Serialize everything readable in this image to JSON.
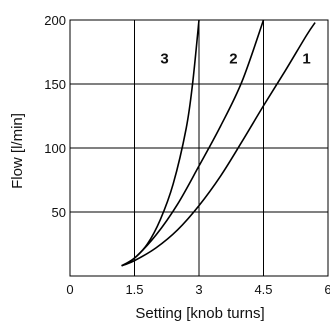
{
  "chart_data": {
    "type": "line",
    "title": "",
    "xlabel": "Setting [knob turns]",
    "ylabel": "Flow [l/min]",
    "xlim": [
      0,
      6
    ],
    "ylim": [
      0,
      200
    ],
    "x_ticks": [
      {
        "value": 0,
        "label": "0"
      },
      {
        "value": 1.5,
        "label": "1.5"
      },
      {
        "value": 3,
        "label": "3"
      },
      {
        "value": 4.5,
        "label": "4.5"
      },
      {
        "value": 6,
        "label": "6"
      }
    ],
    "y_ticks": [
      {
        "value": 50,
        "label": "50"
      },
      {
        "value": 100,
        "label": "100"
      },
      {
        "value": 150,
        "label": "150"
      },
      {
        "value": 200,
        "label": "200"
      }
    ],
    "grid": true,
    "series": [
      {
        "label": "1",
        "color": "#000000",
        "points": [
          [
            1.2,
            8
          ],
          [
            1.5,
            12
          ],
          [
            2.0,
            22
          ],
          [
            2.5,
            36
          ],
          [
            3.0,
            55
          ],
          [
            3.5,
            78
          ],
          [
            4.0,
            105
          ],
          [
            4.5,
            133
          ],
          [
            5.0,
            160
          ],
          [
            5.5,
            188
          ],
          [
            5.7,
            198
          ]
        ],
        "label_pos": [
          5.5,
          170
        ]
      },
      {
        "label": "2",
        "color": "#000000",
        "points": [
          [
            1.2,
            8
          ],
          [
            1.5,
            14
          ],
          [
            2.0,
            32
          ],
          [
            2.5,
            56
          ],
          [
            3.0,
            86
          ],
          [
            3.5,
            117
          ],
          [
            4.0,
            152
          ],
          [
            4.5,
            200
          ]
        ],
        "label_pos": [
          3.8,
          170
        ]
      },
      {
        "label": "3",
        "color": "#000000",
        "points": [
          [
            1.2,
            8
          ],
          [
            1.5,
            14
          ],
          [
            1.8,
            25
          ],
          [
            2.1,
            44
          ],
          [
            2.4,
            72
          ],
          [
            2.7,
            115
          ],
          [
            2.85,
            150
          ],
          [
            3.0,
            200
          ]
        ],
        "label_pos": [
          2.2,
          170
        ]
      }
    ]
  }
}
